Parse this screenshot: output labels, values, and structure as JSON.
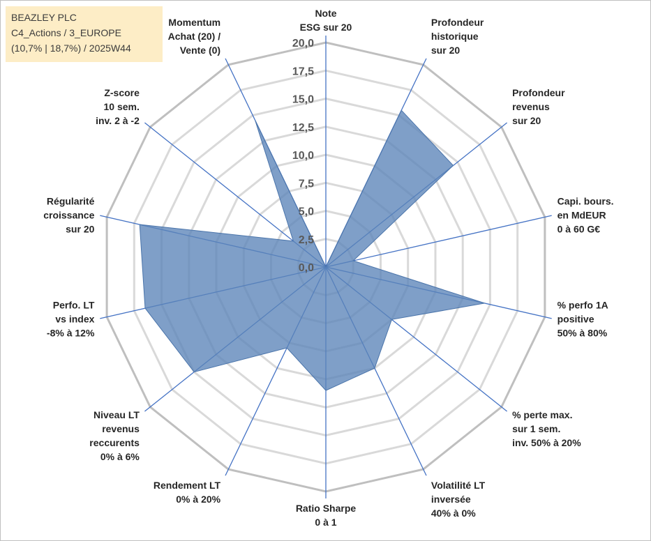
{
  "header": {
    "company": "BEAZLEY PLC",
    "category": "C4_Actions / 3_EUROPE",
    "stats": "(10,7% | 18,7%) / 2025W44"
  },
  "chart_data": {
    "type": "radar",
    "title": "BEAZLEY PLC",
    "range": [
      0,
      20
    ],
    "ticks": [
      0,
      2.5,
      5,
      7.5,
      10,
      12.5,
      15,
      17.5,
      20
    ],
    "tick_labels": [
      "0,0",
      "2,5",
      "5,0",
      "7,5",
      "10,0",
      "12,5",
      "15,0",
      "17,5",
      "20,0"
    ],
    "axes": [
      {
        "label": [
          "Note",
          "ESG sur 20"
        ],
        "value": 0
      },
      {
        "label": [
          "Profondeur",
          "historique",
          "sur 20"
        ],
        "value": 15.5
      },
      {
        "label": [
          "Profondeur",
          "revenus",
          "sur 20"
        ],
        "value": 14.5
      },
      {
        "label": [
          "Capi. bours.",
          "en MdEUR",
          "0 à 60 G€"
        ],
        "value": 2.5
      },
      {
        "label": [
          "% perfo 1A",
          "positive",
          "50% à 80%"
        ],
        "value": 14.5
      },
      {
        "label": [
          "% perte max.",
          "sur 1 sem.",
          "inv. 50% à 20%"
        ],
        "value": 7.5
      },
      {
        "label": [
          "Volatilité LT",
          "inversée",
          "40% à 0%"
        ],
        "value": 10
      },
      {
        "label": [
          "Ratio Sharpe",
          "0 à 1"
        ],
        "value": 11
      },
      {
        "label": [
          "Rendement LT",
          "0% à 20%"
        ],
        "value": 8
      },
      {
        "label": [
          "Niveau LT",
          "revenus",
          "reccurents",
          "0% à 6%"
        ],
        "value": 15
      },
      {
        "label": [
          "Perfo. LT",
          "vs index",
          "-8% à 12%"
        ],
        "value": 16.5
      },
      {
        "label": [
          "Régularité",
          "croissance",
          "sur 20"
        ],
        "value": 17
      },
      {
        "label": [
          "Z-score",
          "10 sem.",
          "inv. 2 à -2"
        ],
        "value": 3.7
      },
      {
        "label": [
          "Momentum",
          "Achat (20) /",
          "Vente (0)"
        ],
        "value": 14.5
      }
    ],
    "colors": {
      "fill": "#5b84b8",
      "fill_opacity": "0.78",
      "spoke": "#4472c4",
      "grid_outer": "#bfbfbf",
      "grid_inner": "#d9d9d9"
    }
  }
}
